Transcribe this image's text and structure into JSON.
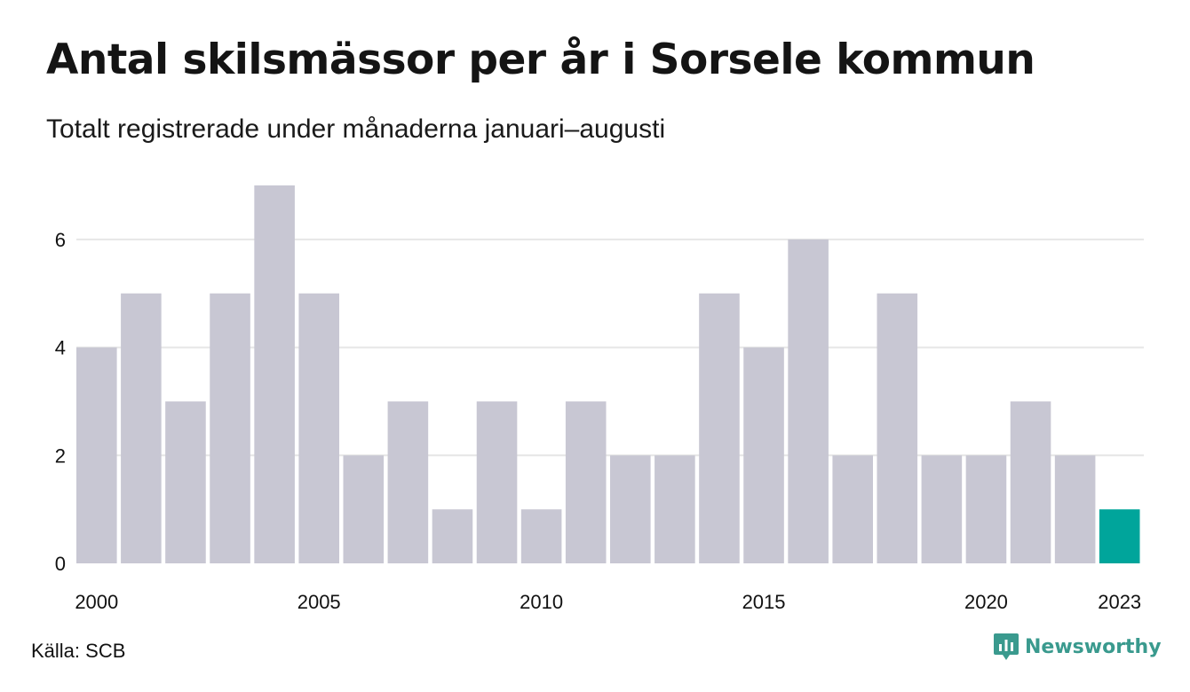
{
  "title": "Antal skilsmässor per år i Sorsele kommun",
  "subtitle": "Totalt registrerade under månaderna januari–augusti",
  "source": "Källa: SCB",
  "brand": "Newsworthy",
  "colors": {
    "bar": "#c8c7d3",
    "highlight": "#00a59b",
    "grid": "#e6e6e6",
    "brand": "#3a9a8e"
  },
  "chart_data": {
    "type": "bar",
    "categories": [
      "2000",
      "2001",
      "2002",
      "2003",
      "2004",
      "2005",
      "2006",
      "2007",
      "2008",
      "2009",
      "2010",
      "2011",
      "2012",
      "2013",
      "2014",
      "2015",
      "2016",
      "2017",
      "2018",
      "2019",
      "2020",
      "2021",
      "2022",
      "2023"
    ],
    "values": [
      4,
      5,
      3,
      5,
      7,
      5,
      2,
      3,
      1,
      3,
      1,
      3,
      2,
      2,
      5,
      4,
      6,
      2,
      5,
      2,
      2,
      3,
      2,
      1
    ],
    "highlight": "2023",
    "x_tick_labels": [
      "2000",
      "2005",
      "2010",
      "2015",
      "2020",
      "2023"
    ],
    "y_ticks": [
      0,
      2,
      4,
      6
    ],
    "ylim": [
      0,
      7
    ],
    "grid": true
  }
}
